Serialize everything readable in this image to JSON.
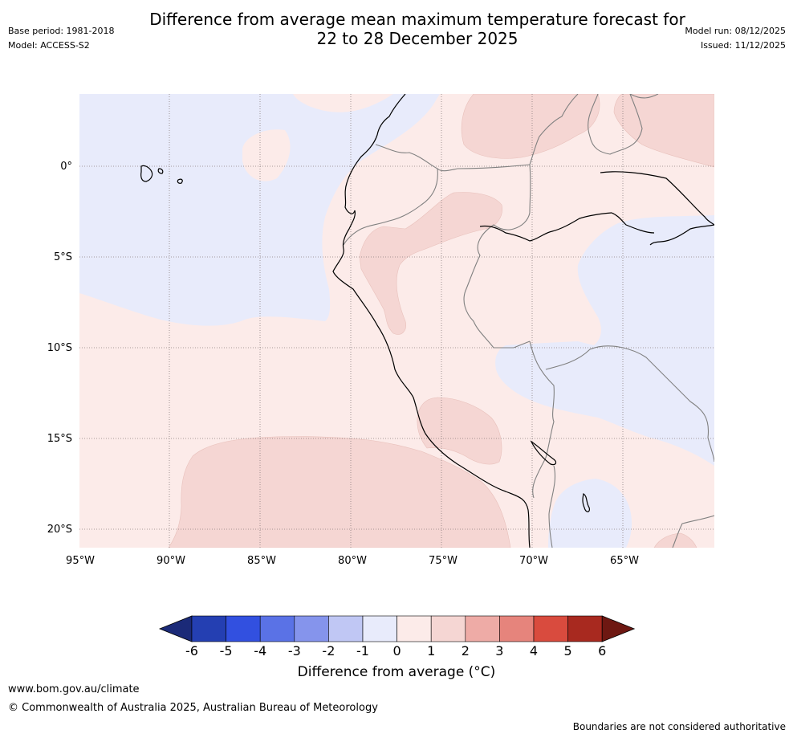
{
  "title": {
    "line1": "Difference from average mean maximum temperature forecast for",
    "line2": "22 to 28 December 2025"
  },
  "meta": {
    "base_period": "Base period: 1981-2018",
    "model": "Model: ACCESS-S2",
    "model_run": "Model run: 08/12/2025",
    "issued": "Issued: 11/12/2025"
  },
  "map": {
    "lat_labels": [
      "0°",
      "5°S",
      "10°S",
      "15°S",
      "20°S"
    ],
    "lon_labels": [
      "95°W",
      "90°W",
      "85°W",
      "80°W",
      "75°W",
      "70°W",
      "65°W"
    ],
    "colors": {
      "neg1_0": "#e8ebfb",
      "pos0_1": "#fcebe9",
      "pos1_2": "#f5d6d3",
      "coast": "#000000",
      "border": "#808080"
    }
  },
  "colorbar": {
    "title": "Difference from average (°C)",
    "ticks": [
      "-6",
      "-5",
      "-4",
      "-3",
      "-2",
      "-1",
      "0",
      "1",
      "2",
      "3",
      "4",
      "5",
      "6"
    ],
    "colors": [
      "#1b2a78",
      "#243fb2",
      "#3250e0",
      "#5a72e6",
      "#8594ec",
      "#c0c7f4",
      "#e8ebfb",
      "#fcebe9",
      "#f5d6d3",
      "#eeaba6",
      "#e6847c",
      "#d94b3e",
      "#a8291f",
      "#6e1812"
    ]
  },
  "footer": {
    "url": "www.bom.gov.au/climate",
    "copyright": "© Commonwealth of Australia 2025, Australian Bureau of Meteorology",
    "disclaimer": "Boundaries are not considered authoritative"
  }
}
